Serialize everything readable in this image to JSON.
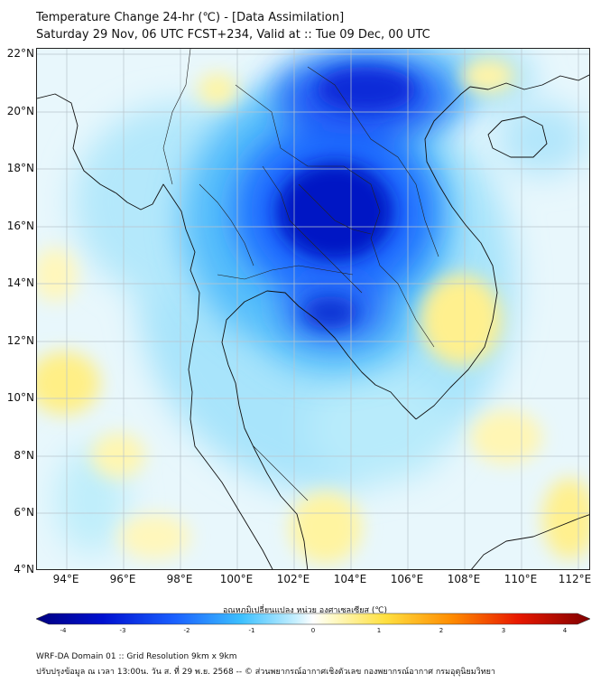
{
  "title_line1": "Temperature Change 24-hr (℃) - [Data Assimilation]",
  "title_line2": "Saturday 29 Nov, 06 UTC FCST+234, Valid at :: Tue 09 Dec, 00 UTC",
  "lat_labels": [
    "22°N",
    "20°N",
    "18°N",
    "16°N",
    "14°N",
    "12°N",
    "10°N",
    "8°N",
    "6°N",
    "4°N"
  ],
  "lon_labels": [
    "94°E",
    "96°E",
    "98°E",
    "100°E",
    "102°E",
    "104°E",
    "106°E",
    "108°E",
    "110°E",
    "112°E"
  ],
  "colorbar": {
    "label": "อุณหภูมิเปลี่ยนแปลง หน่วย องศาเซลเซียส (℃)",
    "ticks": [
      "-4",
      "-3",
      "-2",
      "-1",
      "0",
      "1",
      "2",
      "3",
      "4"
    ],
    "min": -4,
    "max": 4
  },
  "footer_line1": "WRF-DA Domain 01 :: Grid Resolution 9km x 9km",
  "footer_line2": "ปรับปรุงข้อมูล ณ เวลา 13:00น. วัน ส. ที่ 29 พ.ย. 2568 -- © ส่วนพยากรณ์อากาศเชิงตัวเลข กองพยากรณ์อากาศ กรมอุตุนิยมวิทยา",
  "colors": {
    "dark_blue": "#0015c8",
    "blue": "#1e64ff",
    "light_blue": "#7fd8ff",
    "background": "#e6f6fc",
    "yellow": "#fff28a",
    "coast": "#111111",
    "grid": "#b8c4cc"
  }
}
